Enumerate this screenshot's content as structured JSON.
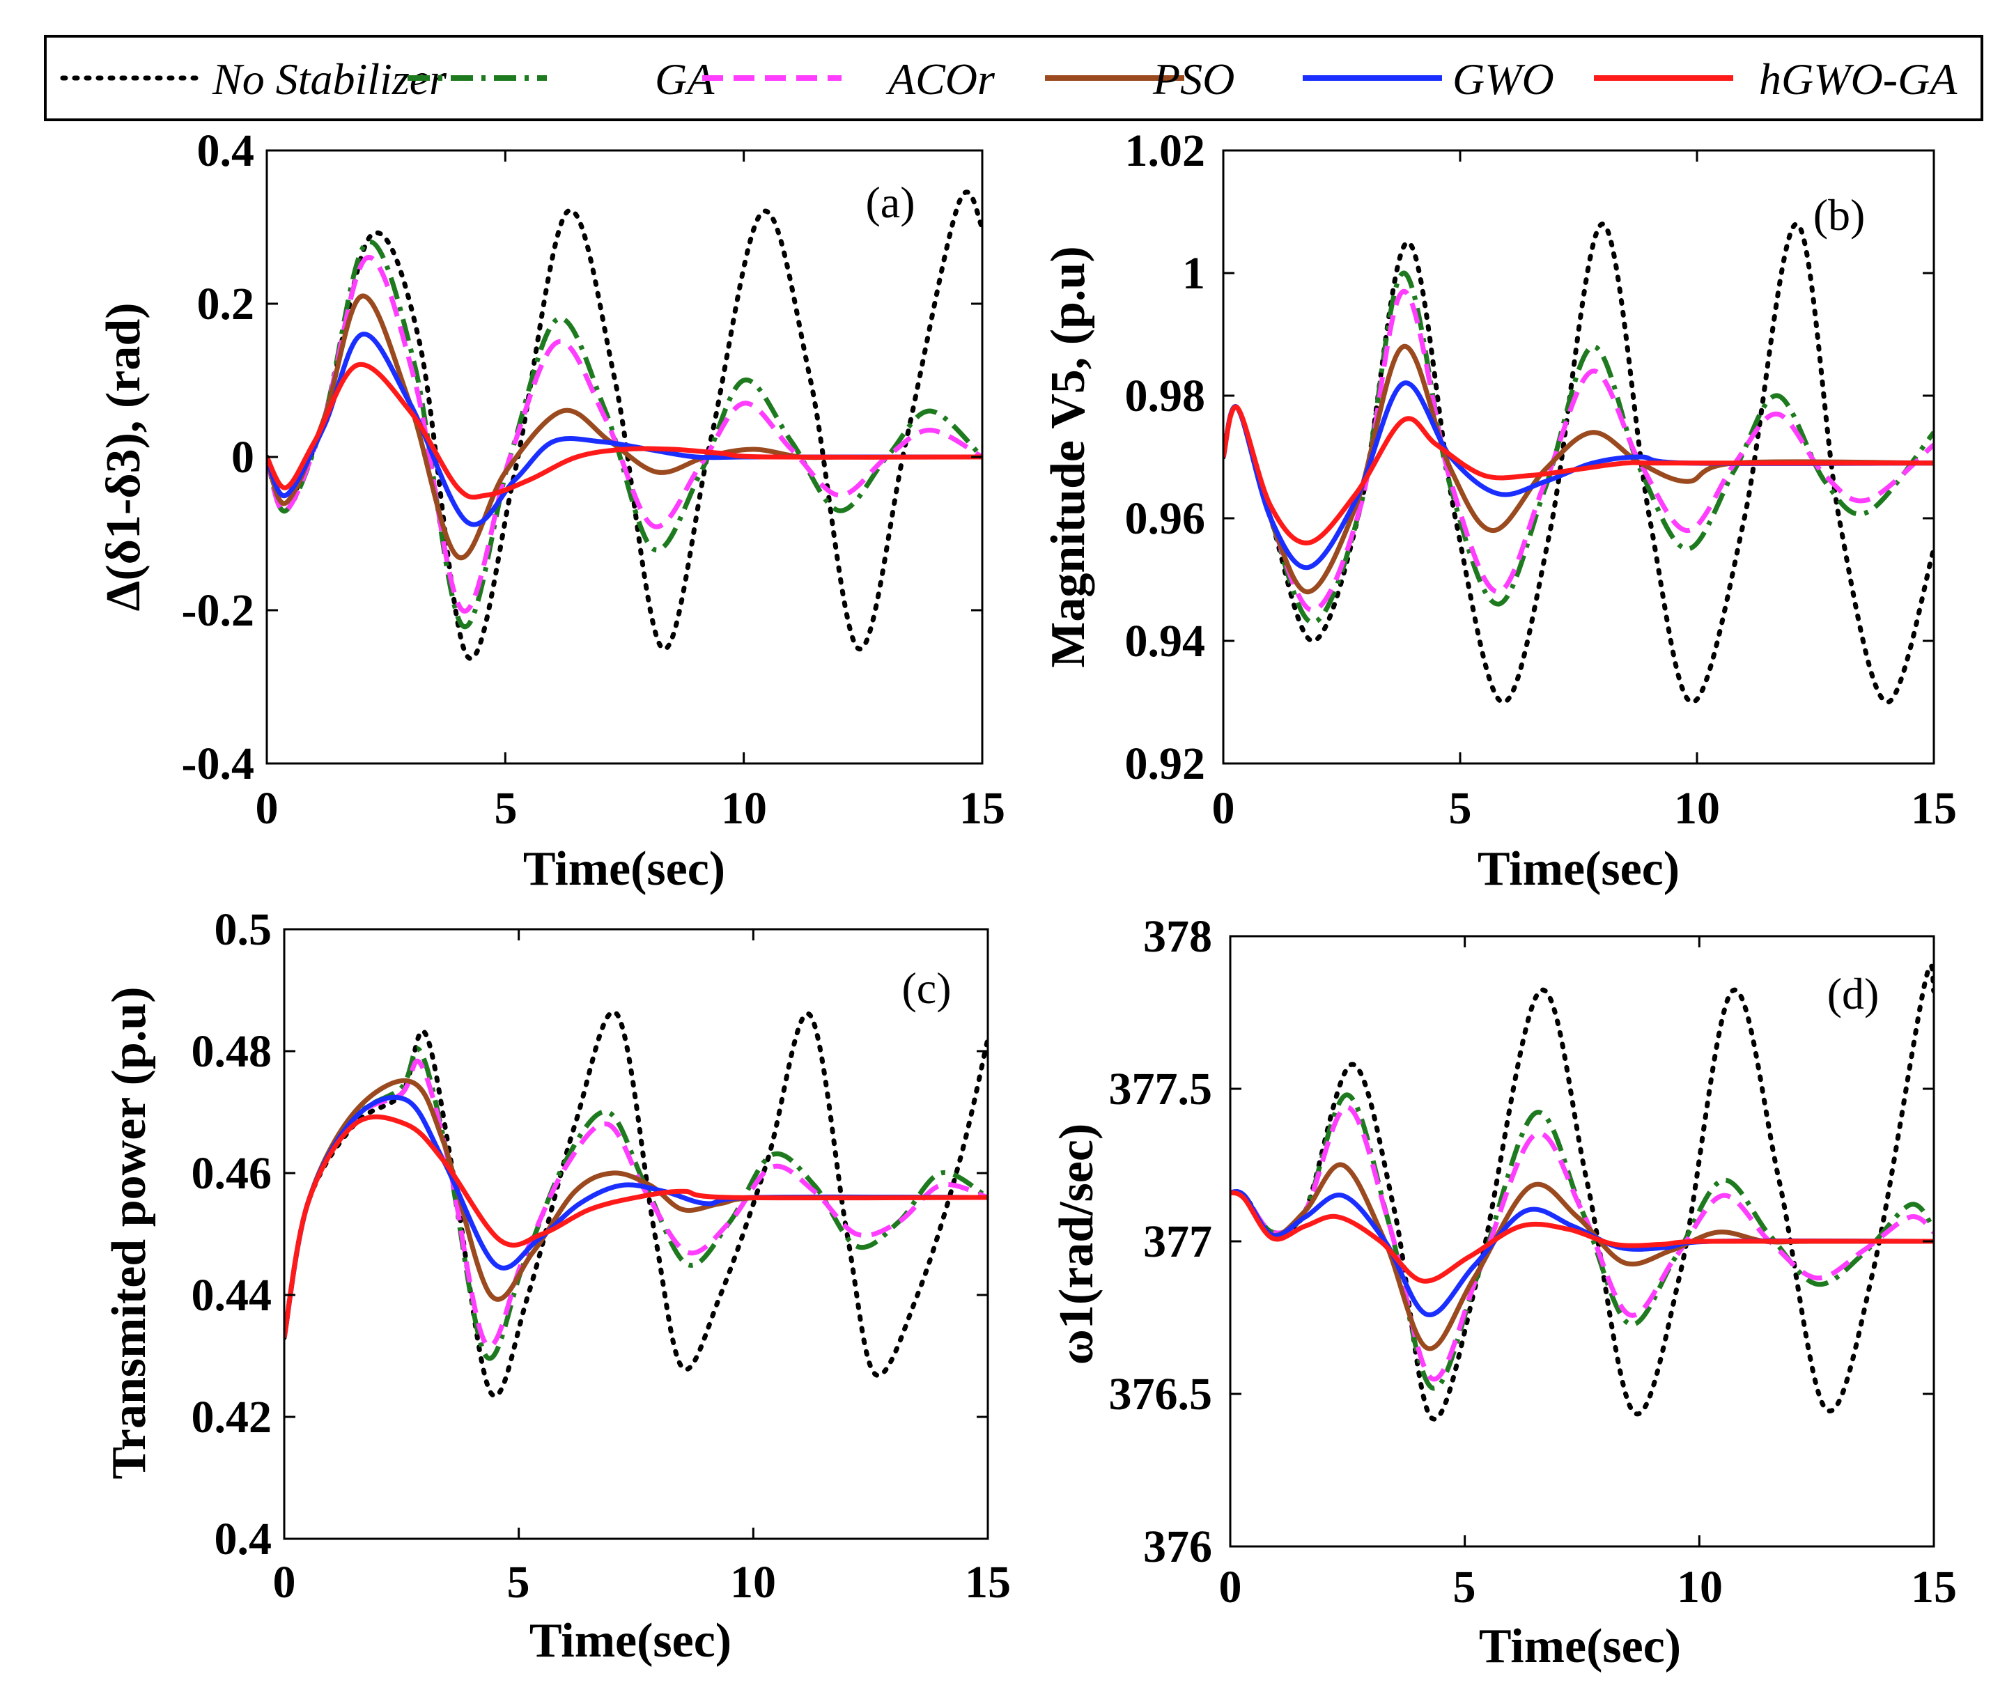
{
  "legend": {
    "entries": [
      {
        "label": "No Stabilizer",
        "color": "#000000",
        "dash": "dotted"
      },
      {
        "label": "GA",
        "color": "#1e7a1e",
        "dash": "dashdot"
      },
      {
        "label": "ACOr",
        "color": "#ff3dff",
        "dash": "dashed"
      },
      {
        "label": "PSO",
        "color": "#9a4a1e",
        "dash": "solid"
      },
      {
        "label": "GWO",
        "color": "#1a2fff",
        "dash": "solid"
      },
      {
        "label": "hGWO-GA",
        "color": "#ff1a1a",
        "dash": "solid"
      }
    ]
  },
  "chart_data": [
    {
      "type": "line",
      "panel": "(a)",
      "xlabel": "Time(sec)",
      "ylabel": "Δ(δ1-δ3), (rad)",
      "xlim": [
        0,
        15
      ],
      "ylim": [
        -0.4,
        0.4
      ],
      "xticks": [
        0,
        5,
        10,
        15
      ],
      "xtick_labels": [
        "0",
        "5",
        "10",
        "15"
      ],
      "yticks": [
        -0.4,
        -0.2,
        0,
        0.2,
        0.4
      ],
      "ytick_labels": [
        "-0.4",
        "-0.2",
        "0",
        "0.2",
        "0.4"
      ],
      "series": [
        {
          "name": "No Stabilizer",
          "x": [
            0,
            0.4,
            1.2,
            2.2,
            3.2,
            4.2,
            5.2,
            6.3,
            7.3,
            8.3,
            9.3,
            10.4,
            11.4,
            12.4,
            13.4,
            14.5,
            15
          ],
          "y": [
            0,
            -0.06,
            0.05,
            0.29,
            0.15,
            -0.26,
            -0.02,
            0.32,
            0.1,
            -0.25,
            0.02,
            0.32,
            0.1,
            -0.25,
            0.02,
            0.33,
            0.3
          ]
        },
        {
          "name": "GA",
          "x": [
            0,
            0.4,
            1.2,
            2.1,
            3.1,
            4.1,
            5.1,
            6.1,
            7.1,
            8.1,
            9.1,
            10.0,
            11.0,
            12.0,
            13.0,
            13.9,
            15
          ],
          "y": [
            0,
            -0.07,
            0.05,
            0.28,
            0.12,
            -0.22,
            0.0,
            0.18,
            0.06,
            -0.12,
            -0.02,
            0.1,
            0.02,
            -0.07,
            0.0,
            0.06,
            0.0
          ]
        },
        {
          "name": "ACOr",
          "x": [
            0,
            0.4,
            1.2,
            2.1,
            3.1,
            4.1,
            5.1,
            6.1,
            7.1,
            8.1,
            9.1,
            10.0,
            11.0,
            12.0,
            13.0,
            13.9,
            15
          ],
          "y": [
            0,
            -0.07,
            0.05,
            0.26,
            0.1,
            -0.2,
            0.0,
            0.15,
            0.05,
            -0.09,
            -0.01,
            0.07,
            0.01,
            -0.05,
            0.0,
            0.035,
            0.0
          ]
        },
        {
          "name": "PSO",
          "x": [
            0,
            0.4,
            1.2,
            2.0,
            3.0,
            4.0,
            5.0,
            6.2,
            7.2,
            8.2,
            9.2,
            10.2,
            11.2,
            12.2,
            15
          ],
          "y": [
            0,
            -0.06,
            0.05,
            0.21,
            0.07,
            -0.13,
            -0.02,
            0.06,
            0.02,
            -0.02,
            0.0,
            0.01,
            0.0,
            0.0,
            0.0
          ]
        },
        {
          "name": "GWO",
          "x": [
            0,
            0.4,
            1.2,
            2.0,
            3.0,
            4.2,
            5.2,
            6.0,
            7.0,
            8.0,
            9.0,
            10.0,
            11.0,
            15
          ],
          "y": [
            0,
            -0.05,
            0.04,
            0.16,
            0.07,
            -0.085,
            -0.03,
            0.02,
            0.02,
            0.01,
            0.0,
            0.0,
            0.0,
            0.0
          ]
        },
        {
          "name": "hGWO-GA",
          "x": [
            0,
            0.4,
            1.0,
            1.9,
            3.0,
            4.0,
            4.6,
            5.5,
            6.5,
            7.5,
            8.5,
            9.5,
            10.5,
            15
          ],
          "y": [
            0,
            -0.04,
            0.02,
            0.12,
            0.06,
            -0.04,
            -0.05,
            -0.03,
            0.0,
            0.01,
            0.01,
            0.005,
            0.0,
            0.0
          ]
        }
      ]
    },
    {
      "type": "line",
      "panel": "(b)",
      "xlabel": "Time(sec)",
      "ylabel": "Magnitude V5, (p.u)",
      "xlim": [
        0,
        15
      ],
      "ylim": [
        0.92,
        1.02
      ],
      "xticks": [
        0,
        5,
        10,
        15
      ],
      "xtick_labels": [
        "0",
        "5",
        "10",
        "15"
      ],
      "yticks": [
        0.92,
        0.94,
        0.96,
        0.98,
        1.0,
        1.02
      ],
      "ytick_labels": [
        "0.92",
        "0.94",
        "0.96",
        "0.98",
        "1",
        "1.02"
      ],
      "series": [
        {
          "name": "No Stabilizer",
          "x": [
            0,
            0.3,
            1.0,
            1.9,
            2.9,
            3.9,
            4.9,
            5.9,
            6.9,
            8.0,
            9.0,
            9.9,
            11.0,
            12.1,
            13.0,
            14.0,
            15
          ],
          "y": [
            0.97,
            0.978,
            0.96,
            0.94,
            0.962,
            1.005,
            0.96,
            0.93,
            0.958,
            1.008,
            0.96,
            0.93,
            0.96,
            1.008,
            0.96,
            0.93,
            0.955
          ]
        },
        {
          "name": "GA",
          "x": [
            0,
            0.3,
            1.0,
            1.9,
            2.9,
            3.8,
            4.8,
            5.8,
            6.8,
            7.8,
            8.8,
            9.8,
            10.8,
            11.7,
            12.7,
            13.6,
            15
          ],
          "y": [
            0.97,
            0.978,
            0.96,
            0.943,
            0.962,
            1.0,
            0.965,
            0.946,
            0.965,
            0.988,
            0.968,
            0.955,
            0.968,
            0.98,
            0.966,
            0.961,
            0.974
          ]
        },
        {
          "name": "ACOr",
          "x": [
            0,
            0.3,
            1.0,
            1.9,
            2.9,
            3.8,
            4.8,
            5.8,
            6.8,
            7.8,
            8.8,
            9.8,
            10.8,
            11.7,
            12.7,
            13.6,
            15
          ],
          "y": [
            0.97,
            0.978,
            0.96,
            0.945,
            0.962,
            0.997,
            0.966,
            0.948,
            0.966,
            0.984,
            0.969,
            0.958,
            0.969,
            0.977,
            0.967,
            0.963,
            0.972
          ]
        },
        {
          "name": "PSO",
          "x": [
            0,
            0.3,
            1.0,
            1.8,
            2.8,
            3.8,
            4.8,
            5.7,
            6.8,
            7.8,
            8.8,
            9.8,
            10.8,
            15
          ],
          "y": [
            0.97,
            0.978,
            0.96,
            0.948,
            0.962,
            0.988,
            0.968,
            0.958,
            0.968,
            0.974,
            0.969,
            0.966,
            0.969,
            0.969
          ]
        },
        {
          "name": "GWO",
          "x": [
            0,
            0.3,
            1.0,
            1.8,
            2.8,
            3.8,
            4.8,
            5.8,
            6.8,
            7.8,
            8.8,
            9.8,
            15
          ],
          "y": [
            0.97,
            0.978,
            0.96,
            0.952,
            0.963,
            0.982,
            0.97,
            0.964,
            0.966,
            0.969,
            0.97,
            0.969,
            0.969
          ]
        },
        {
          "name": "hGWO-GA",
          "x": [
            0,
            0.3,
            1.0,
            1.8,
            2.8,
            3.8,
            4.5,
            5.5,
            6.5,
            7.5,
            8.5,
            9.5,
            15
          ],
          "y": [
            0.97,
            0.978,
            0.962,
            0.956,
            0.964,
            0.976,
            0.972,
            0.967,
            0.967,
            0.968,
            0.969,
            0.969,
            0.969
          ]
        }
      ]
    },
    {
      "type": "line",
      "panel": "(c)",
      "xlabel": "Time(sec)",
      "ylabel": "Transmited power (p.u)",
      "xlim": [
        0,
        15
      ],
      "ylim": [
        0.4,
        0.5
      ],
      "xticks": [
        0,
        5,
        10,
        15
      ],
      "xtick_labels": [
        "0",
        "5",
        "10",
        "15"
      ],
      "yticks": [
        0.4,
        0.42,
        0.44,
        0.46,
        0.48,
        0.5
      ],
      "ytick_labels": [
        "0.4",
        "0.42",
        "0.44",
        "0.46",
        "0.48",
        "0.5"
      ],
      "series": [
        {
          "name": "No Stabilizer",
          "x": [
            0,
            0.5,
            1.5,
            2.5,
            3.0,
            3.6,
            4.4,
            5.2,
            6.2,
            7.1,
            7.9,
            8.5,
            9.3,
            10.3,
            11.2,
            12.0,
            12.6,
            13.5,
            14.4,
            15
          ],
          "y": [
            0.433,
            0.455,
            0.468,
            0.473,
            0.483,
            0.46,
            0.424,
            0.44,
            0.468,
            0.486,
            0.45,
            0.428,
            0.44,
            0.462,
            0.486,
            0.45,
            0.427,
            0.44,
            0.462,
            0.482
          ]
        },
        {
          "name": "GA",
          "x": [
            0,
            0.5,
            1.5,
            2.5,
            2.9,
            3.5,
            4.3,
            5.1,
            6.0,
            6.9,
            7.7,
            8.6,
            9.5,
            10.4,
            11.3,
            12.2,
            13.1,
            14.0,
            15
          ],
          "y": [
            0.433,
            0.455,
            0.469,
            0.474,
            0.48,
            0.462,
            0.43,
            0.445,
            0.462,
            0.47,
            0.458,
            0.445,
            0.452,
            0.463,
            0.458,
            0.448,
            0.452,
            0.46,
            0.456
          ]
        },
        {
          "name": "ACOr",
          "x": [
            0,
            0.5,
            1.5,
            2.5,
            2.9,
            3.5,
            4.3,
            5.1,
            6.0,
            6.9,
            7.7,
            8.6,
            9.5,
            10.4,
            11.3,
            12.2,
            13.1,
            14.0,
            15
          ],
          "y": [
            0.433,
            0.455,
            0.469,
            0.473,
            0.478,
            0.462,
            0.432,
            0.446,
            0.461,
            0.468,
            0.457,
            0.447,
            0.452,
            0.461,
            0.457,
            0.45,
            0.452,
            0.458,
            0.456
          ]
        },
        {
          "name": "PSO",
          "x": [
            0,
            0.5,
            1.5,
            2.7,
            3.4,
            4.4,
            5.3,
            6.2,
            7.0,
            7.8,
            8.5,
            9.3,
            10.3,
            15
          ],
          "y": [
            0.433,
            0.455,
            0.47,
            0.475,
            0.465,
            0.44,
            0.447,
            0.457,
            0.46,
            0.458,
            0.454,
            0.455,
            0.456,
            0.456
          ]
        },
        {
          "name": "GWO",
          "x": [
            0,
            0.5,
            1.5,
            2.6,
            3.4,
            4.5,
            5.4,
            6.3,
            7.2,
            8.1,
            9.0,
            10.0,
            15
          ],
          "y": [
            0.433,
            0.455,
            0.469,
            0.472,
            0.462,
            0.445,
            0.449,
            0.455,
            0.458,
            0.457,
            0.455,
            0.456,
            0.456
          ]
        },
        {
          "name": "hGWO-GA",
          "x": [
            0,
            0.5,
            1.5,
            2.6,
            3.4,
            4.6,
            5.5,
            6.5,
            7.5,
            8.5,
            9.5,
            15
          ],
          "y": [
            0.433,
            0.455,
            0.468,
            0.468,
            0.462,
            0.449,
            0.45,
            0.454,
            0.456,
            0.457,
            0.456,
            0.456
          ]
        }
      ]
    },
    {
      "type": "line",
      "panel": "(d)",
      "xlabel": "Time(sec)",
      "ylabel": "ω1(rad/sec)",
      "xlim": [
        0,
        15
      ],
      "ylim": [
        376,
        378
      ],
      "xticks": [
        0,
        5,
        10,
        15
      ],
      "xtick_labels": [
        "0",
        "5",
        "10",
        "15"
      ],
      "yticks": [
        376,
        376.5,
        377,
        377.5,
        378
      ],
      "ytick_labels": [
        "376",
        "376.5",
        "377",
        "377.5",
        "378"
      ],
      "series": [
        {
          "name": "No Stabilizer",
          "x": [
            0,
            0.3,
            0.9,
            1.6,
            2.6,
            3.5,
            4.3,
            5.3,
            6.6,
            7.6,
            8.6,
            9.6,
            10.7,
            11.7,
            12.7,
            13.7,
            14.8,
            15
          ],
          "y": [
            377.16,
            377.15,
            377.03,
            377.1,
            377.58,
            377.1,
            376.42,
            376.9,
            377.82,
            377.2,
            376.44,
            376.9,
            377.82,
            377.2,
            376.45,
            376.9,
            377.84,
            377.82
          ]
        },
        {
          "name": "GA",
          "x": [
            0,
            0.3,
            0.9,
            1.6,
            2.5,
            3.4,
            4.3,
            5.3,
            6.5,
            7.5,
            8.5,
            9.5,
            10.5,
            11.5,
            12.5,
            13.5,
            14.5,
            15
          ],
          "y": [
            377.16,
            377.15,
            377.03,
            377.1,
            377.48,
            377.05,
            376.52,
            376.9,
            377.42,
            377.1,
            376.73,
            376.95,
            377.2,
            377.02,
            376.86,
            376.96,
            377.12,
            377.04
          ]
        },
        {
          "name": "ACOr",
          "x": [
            0,
            0.3,
            0.9,
            1.6,
            2.5,
            3.4,
            4.3,
            5.3,
            6.5,
            7.5,
            8.5,
            9.5,
            10.5,
            11.5,
            12.5,
            13.5,
            14.5,
            15
          ],
          "y": [
            377.16,
            377.15,
            377.03,
            377.1,
            377.44,
            377.05,
            376.55,
            376.9,
            377.35,
            377.1,
            376.76,
            376.95,
            377.15,
            377.0,
            376.88,
            376.97,
            377.08,
            377.03
          ]
        },
        {
          "name": "PSO",
          "x": [
            0,
            0.3,
            0.9,
            1.6,
            2.4,
            3.3,
            4.2,
            5.2,
            6.4,
            7.4,
            8.4,
            9.4,
            10.4,
            11.4,
            12.4,
            15
          ],
          "y": [
            377.16,
            377.15,
            377.02,
            377.1,
            377.25,
            377.0,
            376.65,
            376.88,
            377.18,
            377.08,
            376.93,
            376.97,
            377.03,
            377.0,
            377.0,
            377.0
          ]
        },
        {
          "name": "GWO",
          "x": [
            0,
            0.3,
            0.9,
            1.6,
            2.4,
            3.3,
            4.2,
            5.2,
            6.3,
            7.3,
            8.3,
            9.3,
            10.3,
            15
          ],
          "y": [
            377.16,
            377.15,
            377.02,
            377.08,
            377.15,
            377.0,
            376.76,
            376.92,
            377.1,
            377.05,
            376.98,
            376.98,
            377.0,
            377.0
          ]
        },
        {
          "name": "hGWO-GA",
          "x": [
            0,
            0.3,
            0.9,
            1.6,
            2.3,
            3.2,
            4.1,
            5.1,
            6.2,
            7.2,
            8.2,
            9.2,
            10.2,
            15
          ],
          "y": [
            377.16,
            377.14,
            377.01,
            377.05,
            377.08,
            377.0,
            376.87,
            376.95,
            377.05,
            377.04,
            376.99,
            376.99,
            377.0,
            377.0
          ]
        }
      ]
    }
  ]
}
